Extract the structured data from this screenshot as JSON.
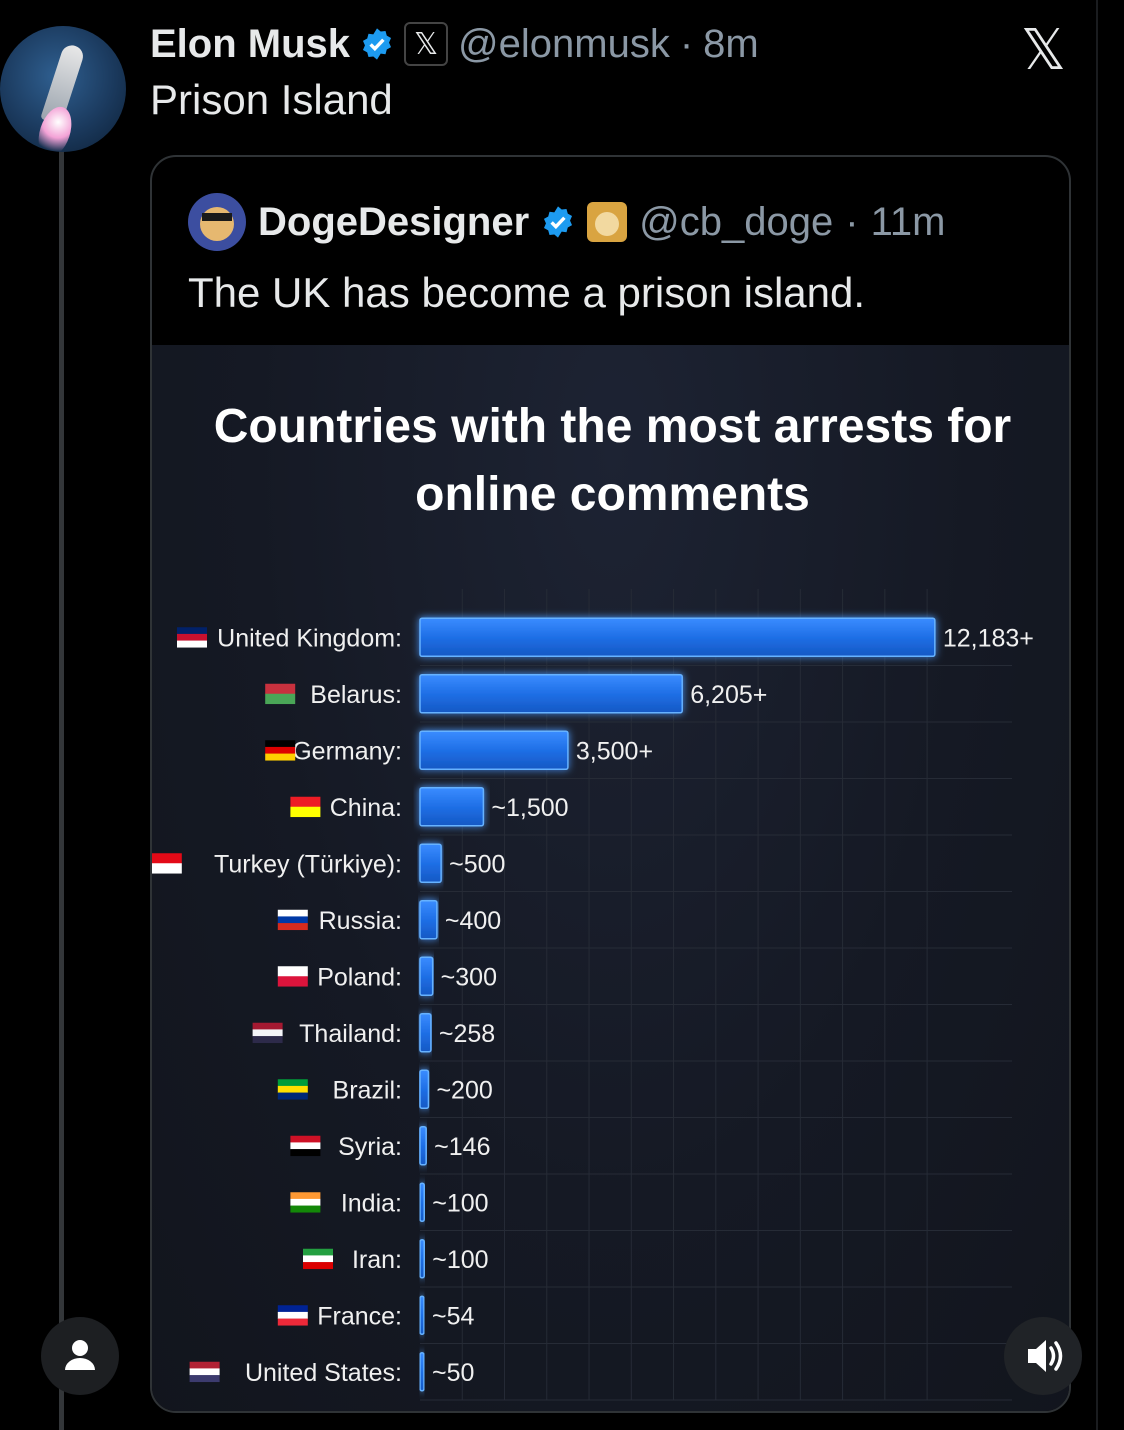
{
  "tweet": {
    "author_name": "Elon Musk",
    "author_handle": "@elonmusk",
    "time": "8m",
    "text": "Prison Island",
    "x_badge": "𝕏",
    "x_logo": "𝕏"
  },
  "quoted_tweet": {
    "author_name": "DogeDesigner",
    "author_handle": "@cb_doge",
    "time": "11m",
    "text": "The UK has become a prison island."
  },
  "icons": {
    "verified": "verified-badge-icon",
    "user": "user-icon",
    "sound": "speaker-icon",
    "x": "x-logo-icon"
  },
  "colors": {
    "accent_blue": "#1d9bf0",
    "bar_blue": "#1a73e8",
    "muted": "#8b98a5"
  },
  "chart_data": {
    "type": "bar",
    "orientation": "horizontal",
    "title": "Countries with the most arrests for online comments",
    "categories": [
      "United Kingdom:",
      "Belarus:",
      "Germany:",
      "China:",
      "Turkey (Türkiye):",
      "Russia:",
      "Poland:",
      "Thailand:",
      "Brazil:",
      "Syria:",
      "India:",
      "Iran:",
      "France:",
      "United States:"
    ],
    "values": [
      12183,
      6205,
      3500,
      1500,
      500,
      400,
      300,
      258,
      200,
      146,
      100,
      100,
      54,
      50
    ],
    "value_labels": [
      "12,183+",
      "6,205+",
      "3,500+",
      "~1,500",
      "~500",
      "~400",
      "~300",
      "~258",
      "~200",
      "~146",
      "~100",
      "~100",
      "~54",
      "~50"
    ],
    "flag_colors": [
      [
        "#012169",
        "#C8102E",
        "#FFFFFF"
      ],
      [
        "#C8313E",
        "#4AA657"
      ],
      [
        "#000000",
        "#DD0000",
        "#FFCE00"
      ],
      [
        "#EE1C25",
        "#FFFF00"
      ],
      [
        "#E30A17",
        "#FFFFFF"
      ],
      [
        "#FFFFFF",
        "#0039A6",
        "#D52B1E"
      ],
      [
        "#FFFFFF",
        "#DC143C"
      ],
      [
        "#A51931",
        "#F4F5F8",
        "#2D2A4A"
      ],
      [
        "#009C3B",
        "#FFDF00",
        "#002776"
      ],
      [
        "#CE1126",
        "#FFFFFF",
        "#000000"
      ],
      [
        "#FF9933",
        "#FFFFFF",
        "#138808"
      ],
      [
        "#239F40",
        "#FFFFFF",
        "#DA0000"
      ],
      [
        "#002395",
        "#FFFFFF",
        "#ED2939"
      ],
      [
        "#B22234",
        "#FFFFFF",
        "#3C3B6E"
      ]
    ],
    "x_ticks": [
      0,
      2000,
      4000,
      6000,
      8000,
      10000
    ],
    "x_tick_labels": [
      "0",
      "2000",
      "4000",
      "6000",
      "8000",
      "10,000"
    ],
    "xlim": [
      0,
      12400
    ],
    "grid": true,
    "legend": "none"
  }
}
